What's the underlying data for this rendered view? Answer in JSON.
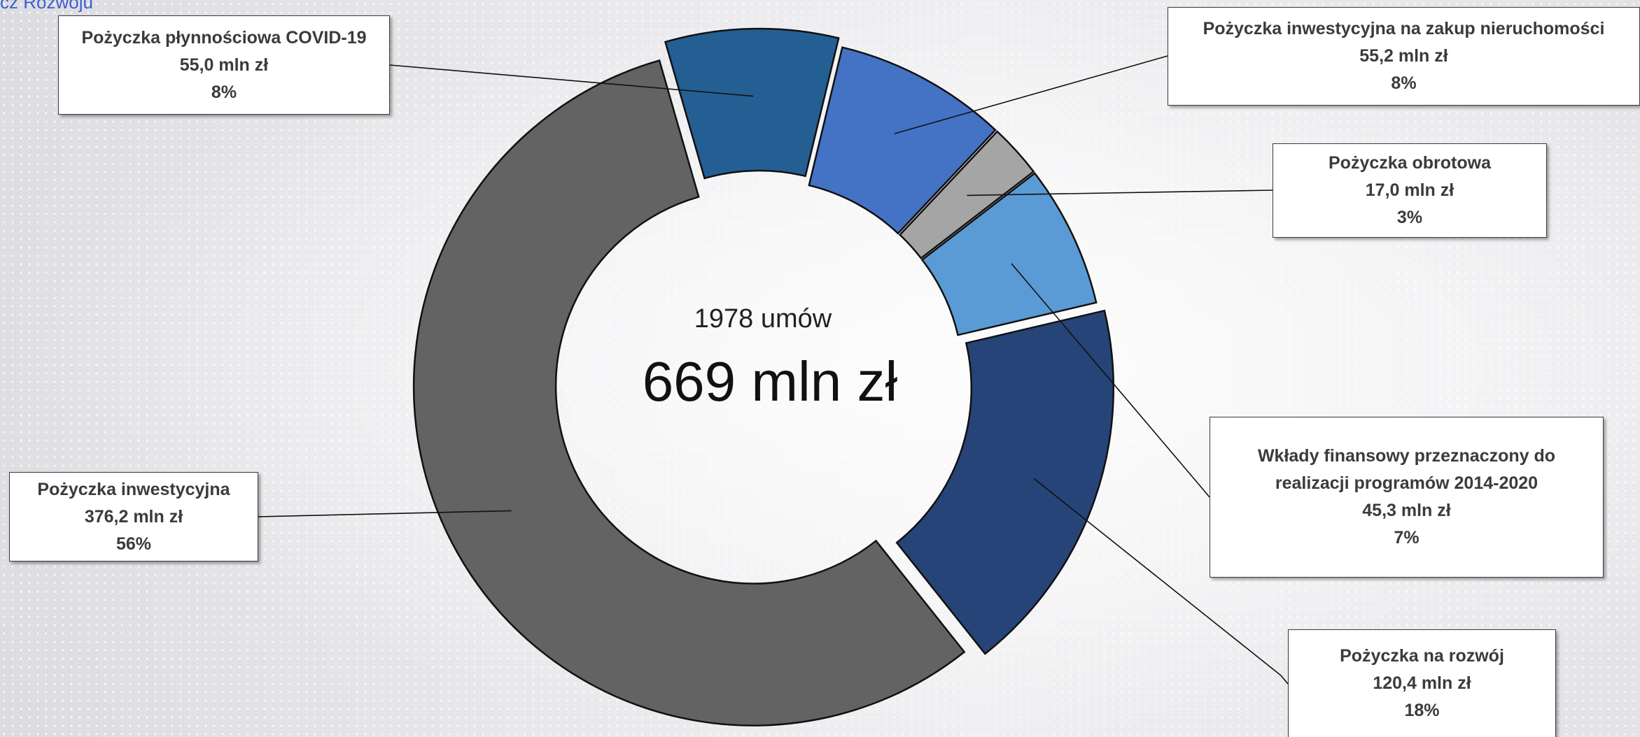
{
  "header": {
    "partial_link_text": "cz Rozwoju"
  },
  "center": {
    "count": "1978 umów",
    "total": "669 mln zł"
  },
  "chart_data": {
    "type": "pie",
    "variant": "donut",
    "total_label": "669 mln zł",
    "count_label": "1978 umów",
    "slices": [
      {
        "name": "Pożyczka płynnościowa COVID-19",
        "value": 55.0,
        "value_label": "55,0 mln zł",
        "percent_label": "8%",
        "color": "#245f93"
      },
      {
        "name": "Pożyczka inwestycyjna na zakup nieruchomości",
        "value": 55.2,
        "value_label": "55,2 mln zł",
        "percent_label": "8%",
        "color": "#4472c4"
      },
      {
        "name": "Pożyczka obrotowa",
        "value": 17.0,
        "value_label": "17,0 mln zł",
        "percent_label": "3%",
        "color": "#a5a5a5"
      },
      {
        "name": "Wkłady finansowy przeznaczony do realizacji programów 2014-2020",
        "value": 45.3,
        "value_label": "45,3 mln zł",
        "percent_label": "7%",
        "color": "#5b9bd5"
      },
      {
        "name": "Pożyczka na rozwój",
        "value": 120.4,
        "value_label": "120,4 mln zł",
        "percent_label": "18%",
        "color": "#264478"
      },
      {
        "name": "Pożyczka inwestycyjna",
        "value": 376.2,
        "value_label": "376,2 mln zł",
        "percent_label": "56%",
        "color": "#636363"
      }
    ]
  },
  "labels": {
    "covid": {
      "name": "Pożyczka płynnościowa COVID-19",
      "value": "55,0 mln zł",
      "percent": "8%"
    },
    "nieruchomosci": {
      "name": "Pożyczka inwestycyjna na zakup nieruchomości",
      "value": "55,2 mln zł",
      "percent": "8%"
    },
    "obrotowa": {
      "name": "Pożyczka obrotowa",
      "value": "17,0 mln zł",
      "percent": "3%"
    },
    "wklady": {
      "name_line1": "Wkłady finansowy przeznaczony do",
      "name_line2": "realizacji programów 2014-2020",
      "value": "45,3 mln zł",
      "percent": "7%"
    },
    "rozwoj": {
      "name": "Pożyczka na rozwój",
      "value": "120,4 mln zł",
      "percent": "18%"
    },
    "inwestycyjna": {
      "name": "Pożyczka inwestycyjna",
      "value": "376,2 mln zł",
      "percent": "56%"
    }
  }
}
